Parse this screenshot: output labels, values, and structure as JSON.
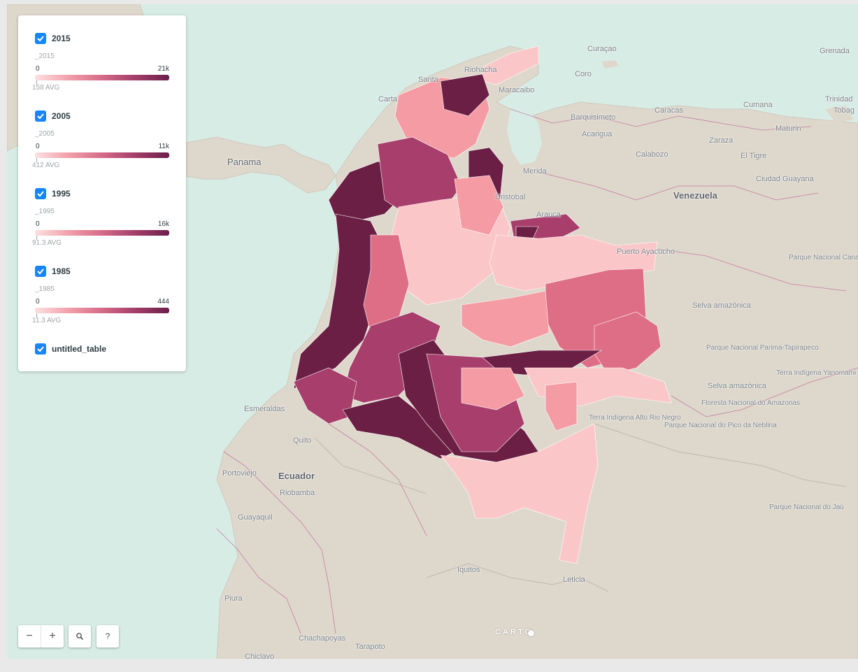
{
  "legend": {
    "layers": [
      {
        "title": "2015",
        "field": "_2015",
        "min": "0",
        "max": "21k",
        "avg": "158 AVG"
      },
      {
        "title": "2005",
        "field": "_2005",
        "min": "0",
        "max": "11k",
        "avg": "412 AVG"
      },
      {
        "title": "1995",
        "field": "_1995",
        "min": "0",
        "max": "16k",
        "avg": "91.3 AVG"
      },
      {
        "title": "1985",
        "field": "_1985",
        "min": "0",
        "max": "444",
        "avg": "11.3 AVG"
      }
    ],
    "base_layer": {
      "title": "untitled_table"
    }
  },
  "map": {
    "countries": [
      "Venezuela",
      "Ecuador"
    ],
    "major_cities": [
      "Panama"
    ],
    "places": [
      "Curaçao",
      "Grenada",
      "Trinidad",
      "Tobag",
      "Maracaibo",
      "Coro",
      "Riohacha",
      "Santa",
      "Carta",
      "Barquisimeto",
      "Acarigua",
      "Caracas",
      "Cumana",
      "Maturin",
      "Zaraza",
      "El Tigre",
      "Calabozo",
      "Merida",
      "Cristobal",
      "Arauca",
      "Ciudad Guayana",
      "Puerto Ayacucho",
      "Selva amazónica",
      "Selva amazónica",
      "Esmeraldas",
      "Quito",
      "Portoviejo",
      "Riobamba",
      "Guayaquil",
      "Piura",
      "Chachapoyas",
      "Tarapoto",
      "Chiclayo",
      "Iquitos",
      "Leticia"
    ],
    "parks": [
      "Parque Nacional Canaima",
      "Parque Nacional Parima-Tapirapeco",
      "Terra Indígena Yanomami",
      "Floresta Nacional do Amazonas",
      "Terra Indígena Alto Rio Negro",
      "Parque Nacional do Pico da Neblina",
      "Parque Nacional do Jaú"
    ],
    "colors": {
      "water": "#d8ece6",
      "land": "#ded8cc",
      "borders": "#b13c8a",
      "choropleth": [
        "#fbc6c8",
        "#f49ba3",
        "#dd6e86",
        "#a83e6c",
        "#6b1f44"
      ]
    }
  },
  "controls": {
    "zoom_out": "−",
    "zoom_in": "+",
    "search_icon": "search-icon",
    "help": "?"
  },
  "attribution": "CARTO"
}
